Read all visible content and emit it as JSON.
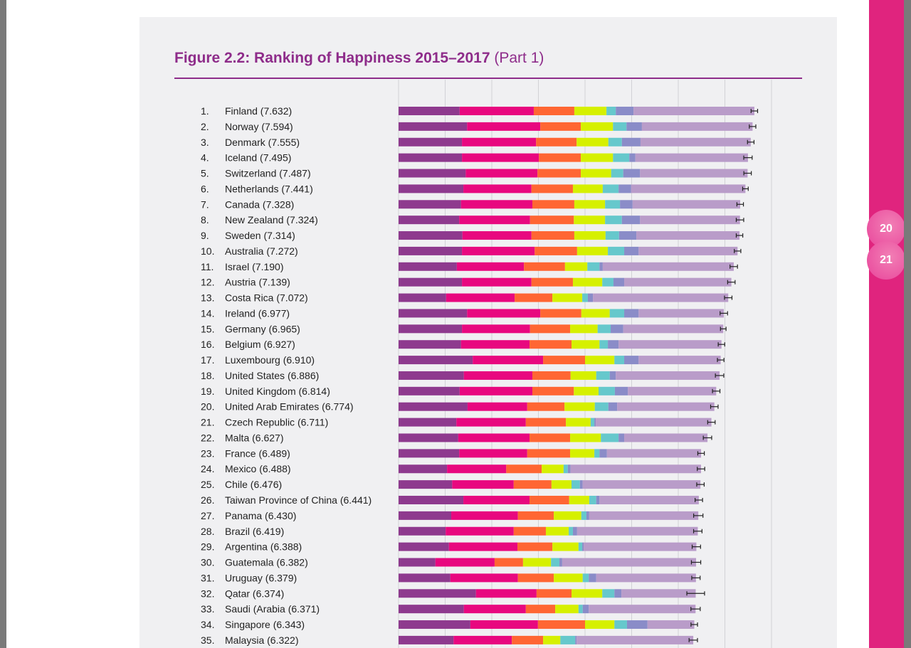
{
  "title": {
    "bold": "Figure 2.2: Ranking of Happiness 2015–2017",
    "sub": "(Part 1)"
  },
  "page_tabs": [
    "20",
    "21"
  ],
  "chart_data": {
    "type": "bar",
    "orientation": "horizontal-stacked",
    "title": "Figure 2.2: Ranking of Happiness 2015–2017 (Part 1)",
    "xlim": [
      0,
      8
    ],
    "grid": true,
    "segment_colors": [
      "#8e3a8e",
      "#e8087f",
      "#ff6633",
      "#d6f000",
      "#66c8cc",
      "#8a8cc8",
      "#b99cc9"
    ],
    "rows": [
      {
        "rank": "1.",
        "name": "Finland",
        "score": "7.632",
        "bounds": [
          1.31,
          2.9,
          3.77,
          4.46,
          4.66,
          5.04
        ],
        "ci": 0.07
      },
      {
        "rank": "2.",
        "name": "Norway",
        "score": "7.594",
        "bounds": [
          1.47,
          3.04,
          3.91,
          4.6,
          4.89,
          5.22
        ],
        "ci": 0.07
      },
      {
        "rank": "3.",
        "name": "Denmark",
        "score": "7.555",
        "bounds": [
          1.36,
          2.95,
          3.82,
          4.5,
          4.79,
          5.19
        ],
        "ci": 0.07
      },
      {
        "rank": "4.",
        "name": "Iceland",
        "score": "7.495",
        "bounds": [
          1.36,
          3.01,
          3.91,
          4.6,
          4.95,
          5.08
        ],
        "ci": 0.09
      },
      {
        "rank": "5.",
        "name": "Switzerland",
        "score": "7.487",
        "bounds": [
          1.44,
          2.98,
          3.91,
          4.56,
          4.82,
          5.18
        ],
        "ci": 0.08
      },
      {
        "rank": "6.",
        "name": "Netherlands",
        "score": "7.441",
        "bounds": [
          1.39,
          2.85,
          3.74,
          4.38,
          4.72,
          4.99
        ],
        "ci": 0.06
      },
      {
        "rank": "7.",
        "name": "Canada",
        "score": "7.328",
        "bounds": [
          1.34,
          2.87,
          3.77,
          4.43,
          4.75,
          5.02
        ],
        "ci": 0.07
      },
      {
        "rank": "8.",
        "name": "New Zealand",
        "score": "7.324",
        "bounds": [
          1.3,
          2.82,
          3.76,
          4.43,
          4.79,
          5.18
        ],
        "ci": 0.08
      },
      {
        "rank": "9.",
        "name": "Sweden",
        "score": "7.314",
        "bounds": [
          1.37,
          2.85,
          3.77,
          4.44,
          4.73,
          5.1
        ],
        "ci": 0.07
      },
      {
        "rank": "10.",
        "name": "Australia",
        "score": "7.272",
        "bounds": [
          1.36,
          2.92,
          3.83,
          4.49,
          4.84,
          5.15
        ],
        "ci": 0.07
      },
      {
        "rank": "11.",
        "name": "Israel",
        "score": "7.190",
        "bounds": [
          1.25,
          2.69,
          3.57,
          4.05,
          4.31,
          4.38
        ],
        "ci": 0.08
      },
      {
        "rank": "12.",
        "name": "Austria",
        "score": "7.139",
        "bounds": [
          1.36,
          2.85,
          3.74,
          4.37,
          4.61,
          4.84
        ],
        "ci": 0.08
      },
      {
        "rank": "13.",
        "name": "Costa Rica",
        "score": "7.072",
        "bounds": [
          1.02,
          2.49,
          3.3,
          3.94,
          4.06,
          4.17
        ],
        "ci": 0.08
      },
      {
        "rank": "14.",
        "name": "Ireland",
        "score": "6.977",
        "bounds": [
          1.47,
          3.04,
          3.92,
          4.53,
          4.84,
          5.15
        ],
        "ci": 0.08
      },
      {
        "rank": "15.",
        "name": "Germany",
        "score": "6.965",
        "bounds": [
          1.36,
          2.82,
          3.68,
          4.27,
          4.55,
          4.82
        ],
        "ci": 0.06
      },
      {
        "rank": "16.",
        "name": "Belgium",
        "score": "6.927",
        "bounds": [
          1.34,
          2.81,
          3.71,
          4.31,
          4.49,
          4.72
        ],
        "ci": 0.07
      },
      {
        "rank": "17.",
        "name": "Luxembourg",
        "score": "6.910",
        "bounds": [
          1.59,
          3.1,
          4.0,
          4.63,
          4.84,
          5.15
        ],
        "ci": 0.07
      },
      {
        "rank": "18.",
        "name": "United States",
        "score": "6.886",
        "bounds": [
          1.4,
          2.87,
          3.69,
          4.24,
          4.53,
          4.66
        ],
        "ci": 0.09
      },
      {
        "rank": "19.",
        "name": "United Kingdom",
        "score": "6.814",
        "bounds": [
          1.31,
          2.87,
          3.76,
          4.29,
          4.64,
          4.92
        ],
        "ci": 0.08
      },
      {
        "rank": "20.",
        "name": "United Arab Emirates",
        "score": "6.774",
        "bounds": [
          1.48,
          2.76,
          3.56,
          4.21,
          4.5,
          4.69
        ],
        "ci": 0.08
      },
      {
        "rank": "21.",
        "name": "Czech Republic",
        "score": "6.711",
        "bounds": [
          1.24,
          2.73,
          3.59,
          4.12,
          4.2,
          4.23
        ],
        "ci": 0.08
      },
      {
        "rank": "22.",
        "name": "Malta",
        "score": "6.627",
        "bounds": [
          1.28,
          2.81,
          3.68,
          4.34,
          4.72,
          4.84
        ],
        "ci": 0.09
      },
      {
        "rank": "23.",
        "name": "France",
        "score": "6.489",
        "bounds": [
          1.3,
          2.76,
          3.68,
          4.2,
          4.31,
          4.47
        ],
        "ci": 0.07
      },
      {
        "rank": "24.",
        "name": "Mexico",
        "score": "6.488",
        "bounds": [
          1.04,
          2.31,
          3.07,
          3.54,
          3.63,
          3.69
        ],
        "ci": 0.08
      },
      {
        "rank": "25.",
        "name": "Chile",
        "score": "6.476",
        "bounds": [
          1.15,
          2.47,
          3.28,
          3.71,
          3.89,
          3.95
        ],
        "ci": 0.08
      },
      {
        "rank": "26.",
        "name": "Taiwan Province of China",
        "score": "6.441",
        "bounds": [
          1.39,
          2.81,
          3.66,
          4.09,
          4.24,
          4.31
        ],
        "ci": 0.08
      },
      {
        "rank": "27.",
        "name": "Panama",
        "score": "6.430",
        "bounds": [
          1.13,
          2.56,
          3.33,
          3.92,
          4.03,
          4.09
        ],
        "ci": 0.1
      },
      {
        "rank": "28.",
        "name": "Brazil",
        "score": "6.419",
        "bounds": [
          1.01,
          2.47,
          3.16,
          3.65,
          3.74,
          3.83
        ],
        "ci": 0.09
      },
      {
        "rank": "29.",
        "name": "Argentina",
        "score": "6.388",
        "bounds": [
          1.08,
          2.55,
          3.3,
          3.86,
          3.94,
          3.97
        ],
        "ci": 0.09
      },
      {
        "rank": "30.",
        "name": "Guatemala",
        "score": "6.382",
        "bounds": [
          0.79,
          2.06,
          2.67,
          3.27,
          3.45,
          3.51
        ],
        "ci": 0.1
      },
      {
        "rank": "31.",
        "name": "Uruguay",
        "score": "6.379",
        "bounds": [
          1.11,
          2.56,
          3.33,
          3.95,
          4.08,
          4.24
        ],
        "ci": 0.09
      },
      {
        "rank": "32.",
        "name": "Qatar",
        "score": "6.374",
        "bounds": [
          1.66,
          2.96,
          3.71,
          4.37,
          4.63,
          4.78
        ],
        "ci": 0.19
      },
      {
        "rank": "33.",
        "name": "Saudi (Arabia",
        "score": "6.371",
        "bounds": [
          1.4,
          2.73,
          3.36,
          3.86,
          3.95,
          4.08
        ],
        "ci": 0.1
      },
      {
        "rank": "34.",
        "name": "Singapore",
        "score": "6.343",
        "bounds": [
          1.54,
          2.99,
          4.0,
          4.63,
          4.9,
          5.34
        ],
        "ci": 0.07
      },
      {
        "rank": "35.",
        "name": "Malaysia",
        "score": "6.322",
        "bounds": [
          1.18,
          2.43,
          3.1,
          3.47,
          3.79,
          3.82
        ],
        "ci": 0.09
      }
    ]
  }
}
